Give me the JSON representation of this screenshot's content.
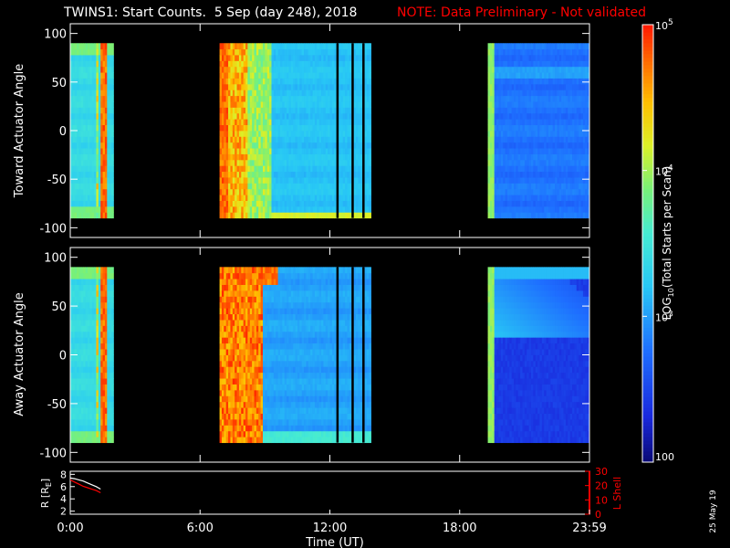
{
  "title": "TWINS1: Start Counts.  5 Sep (day 248), 2018",
  "note": "NOTE: Data Preliminary - Not validated",
  "stamp": "25 May 19",
  "colors": {
    "note": "#ff0000",
    "axis": "#ffffff",
    "lshell": "#ff0000",
    "background": "#000000"
  },
  "xaxis": {
    "label": "Time (UT)",
    "ticks": [
      "0:00",
      "6:00",
      "12:00",
      "18:00",
      "23:59"
    ],
    "tick_hours": [
      0,
      6,
      12,
      18,
      24
    ]
  },
  "panels": [
    {
      "ylabel": "Toward Actuator Angle",
      "yticks": [
        "100",
        "50",
        "0",
        "-50",
        "-100"
      ]
    },
    {
      "ylabel": "Away Actuator Angle",
      "yticks": [
        "100",
        "50",
        "0",
        "-50",
        "-100"
      ]
    }
  ],
  "colorbar": {
    "label_prefix": "LOG",
    "label_sub": "10",
    "label_suffix": "(Total Starts per Scan)",
    "ticks": [
      "10",
      "10",
      "10",
      "100"
    ],
    "tick_exps": [
      "5",
      "4",
      "3",
      ""
    ],
    "tick_values": [
      100000,
      10000,
      1000,
      100
    ]
  },
  "orbit": {
    "ylabel_left": "R [R",
    "ylabel_left_sub": "E",
    "ylabel_left_end": "]",
    "yticks_left": [
      "8",
      "6",
      "4",
      "2"
    ],
    "ylabel_right": "L Shell",
    "yticks_right": [
      "30",
      "20",
      "10",
      "0"
    ]
  },
  "chart_data": [
    {
      "type": "heatmap",
      "name": "Toward Actuator Angle",
      "x_unit": "hours UT",
      "y_unit": "degrees",
      "xlim": [
        0,
        24
      ],
      "ylim": [
        -110,
        110
      ],
      "data_ylim": [
        -90,
        90
      ],
      "log_color_scale": [
        100,
        100000
      ],
      "segments": [
        {
          "x": [
            0.0,
            2.0
          ],
          "level": "~1e3 (cyan), rising to ~1e4-1e5 near 1.4-1.7 h"
        },
        {
          "x": [
            6.9,
            13.9
          ],
          "level": "~1e4-1e5 (orange/yellow) near 6.9-9.5 h, ~1e3 (light blue) after"
        },
        {
          "x": [
            19.3,
            24.0
          ],
          "level": "~1e4 (yellow-green) at 19.3-19.6 h, ~150-300 (blue) after"
        }
      ],
      "gaps": [
        [
          2.0,
          6.9
        ],
        [
          13.9,
          19.3
        ]
      ]
    },
    {
      "type": "heatmap",
      "name": "Away Actuator Angle",
      "x_unit": "hours UT",
      "y_unit": "degrees",
      "xlim": [
        0,
        24
      ],
      "ylim": [
        -110,
        110
      ],
      "data_ylim": [
        -90,
        90
      ],
      "log_color_scale": [
        100,
        100000
      ],
      "segments": [
        {
          "x": [
            0.0,
            2.0
          ],
          "level": "~1e3 (cyan), rising to ~1e4-1e5 near 1.4-1.7 h"
        },
        {
          "x": [
            6.9,
            13.9
          ],
          "level": "~1e5 (red/orange) near 6.9-9.0 h, ~500-800 (blue) after"
        },
        {
          "x": [
            19.3,
            24.0
          ],
          "level": "~1e4 (yellow-green) at 19.3-19.6 h, ~100-200 (dark blue) after"
        }
      ],
      "gaps": [
        [
          2.0,
          6.9
        ],
        [
          13.9,
          19.3
        ]
      ]
    },
    {
      "type": "line",
      "name": "Orbit",
      "xlim": [
        0,
        24
      ],
      "ylim_left": [
        1.5,
        8.5
      ],
      "ylim_right": [
        0,
        30
      ],
      "series": [
        {
          "axis": "left",
          "color": "#ffffff",
          "x": [
            0.0,
            0.2,
            0.4,
            0.6,
            0.8,
            1.0,
            1.2,
            1.4
          ],
          "values": [
            7.4,
            7.3,
            7.1,
            6.9,
            6.6,
            6.3,
            6.0,
            5.6
          ]
        },
        {
          "axis": "right",
          "color": "#ff0000",
          "x": [
            0.0,
            0.2,
            0.4,
            0.6,
            0.8,
            1.0,
            1.2,
            1.4
          ],
          "values": [
            24.0,
            22.5,
            21.0,
            19.5,
            18.5,
            17.5,
            16.5,
            15.0
          ]
        }
      ]
    }
  ]
}
